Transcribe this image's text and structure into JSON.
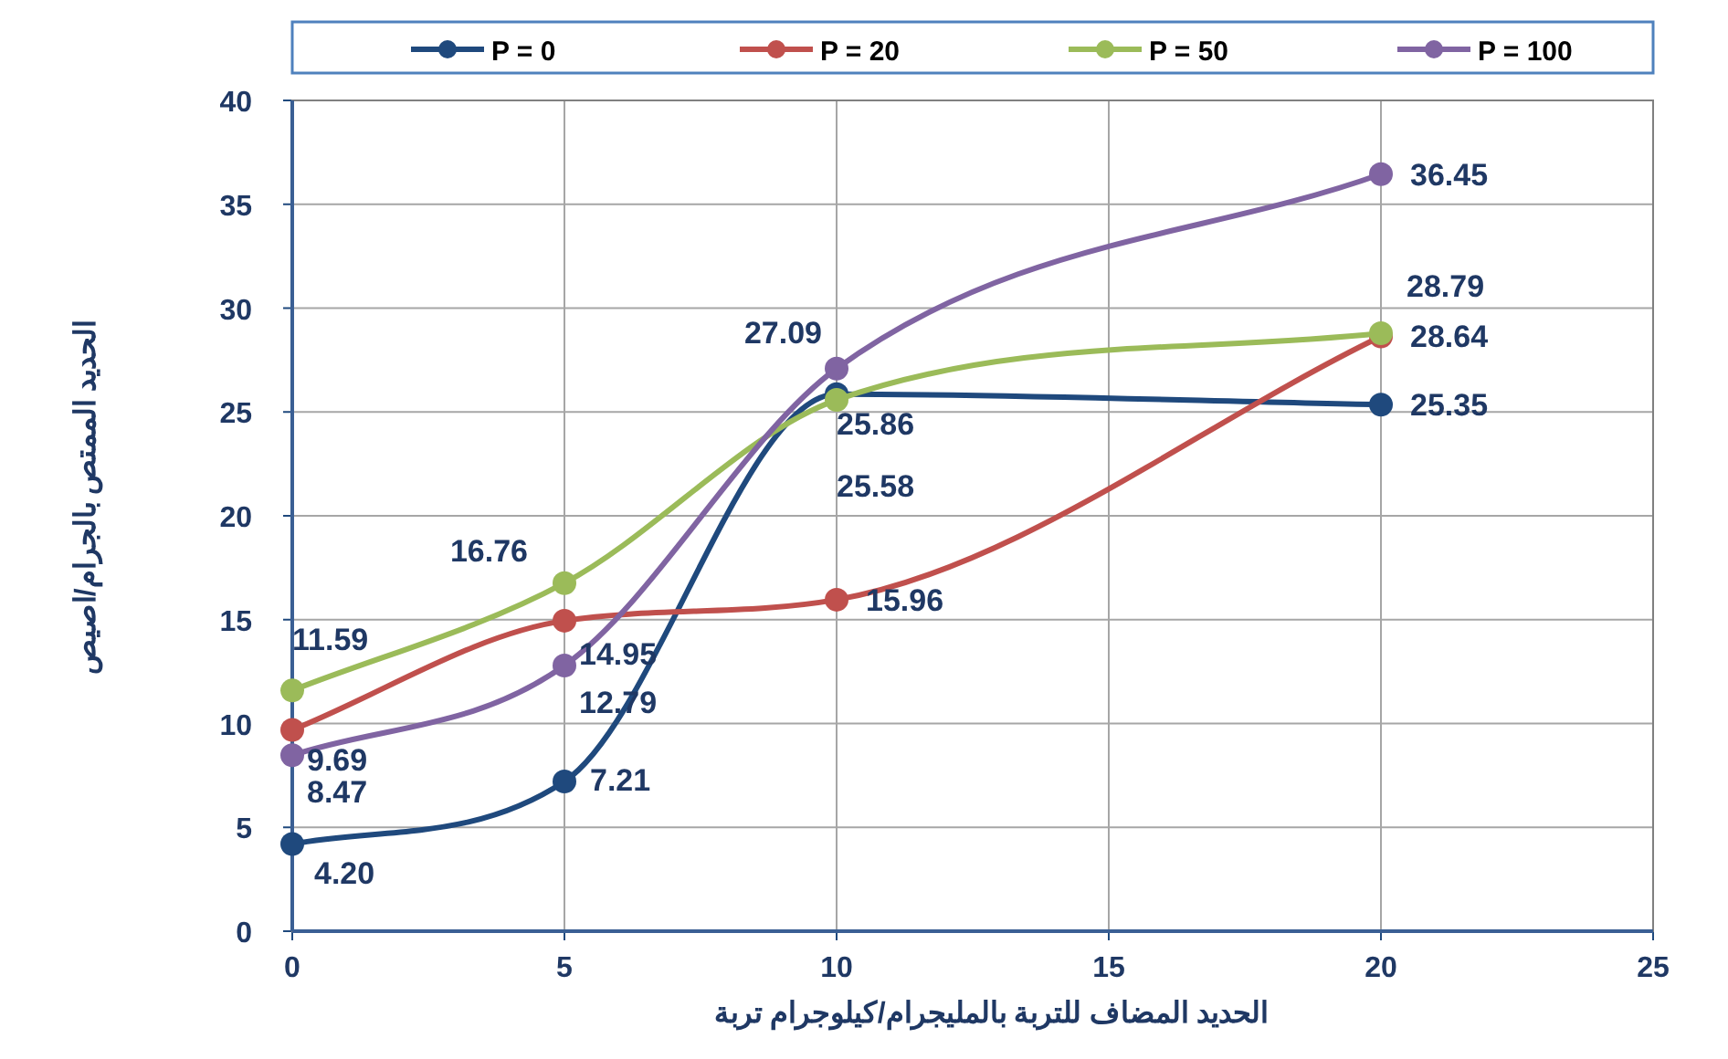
{
  "chart_data": {
    "type": "line",
    "xlabel": "الحديد المضاف للتربة بالمليجرام/كيلوجرام تربة",
    "ylabel": "الحديد الممتص بالجرام/اصيص",
    "x": [
      0,
      5,
      10,
      20
    ],
    "xlim": [
      0,
      25
    ],
    "xticks": [
      0,
      5,
      10,
      15,
      20,
      25
    ],
    "ylim": [
      0,
      40
    ],
    "yticks": [
      0,
      5,
      10,
      15,
      20,
      25,
      30,
      35,
      40
    ],
    "grid": true,
    "legend": "top",
    "marker": "circle",
    "line_style": "solid",
    "series": [
      {
        "name": "P = 0",
        "color": "#1f497d",
        "values": [
          4.2,
          7.21,
          25.86,
          25.35
        ],
        "value_labels": [
          "4.20",
          "7.21",
          "25.86",
          "25.35"
        ]
      },
      {
        "name": "P = 20",
        "color": "#c0504d",
        "values": [
          9.69,
          14.95,
          15.96,
          28.64
        ],
        "value_labels": [
          "9.69",
          "14.95",
          "15.96",
          "28.64"
        ]
      },
      {
        "name": "P = 50",
        "color": "#9bbb59",
        "values": [
          11.59,
          16.76,
          25.58,
          28.79
        ],
        "value_labels": [
          "11.59",
          "16.76",
          "25.58",
          "28.79"
        ]
      },
      {
        "name": "P = 100",
        "color": "#8064a2",
        "values": [
          8.47,
          12.79,
          27.09,
          36.45
        ],
        "value_labels": [
          "8.47",
          "12.79",
          "27.09",
          "36.45"
        ]
      }
    ]
  }
}
